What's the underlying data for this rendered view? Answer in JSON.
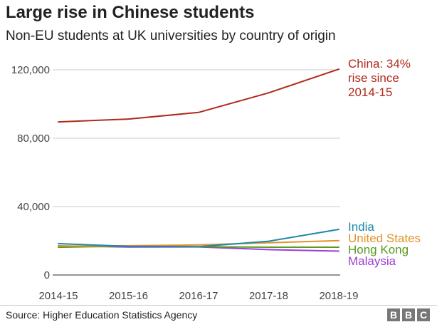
{
  "header": {
    "title": "Large rise in Chinese students",
    "subtitle": "Non-EU students at UK universities by country of origin"
  },
  "footer": {
    "source": "Source: Higher Education Statistics Agency",
    "logo_letters": [
      "B",
      "B",
      "C"
    ]
  },
  "chart_data": {
    "type": "line",
    "title": "Large rise in Chinese students",
    "subtitle": "Non-EU students at UK universities by country of origin",
    "xlabel": "",
    "ylabel": "",
    "categories": [
      "2014-15",
      "2015-16",
      "2016-17",
      "2017-18",
      "2018-19"
    ],
    "ylim": [
      0,
      120000
    ],
    "yticks": [
      0,
      40000,
      80000,
      120000
    ],
    "ytick_labels": [
      "0",
      "40,000",
      "80,000",
      "120,000"
    ],
    "grid": "horizontal",
    "series": [
      {
        "name": "China",
        "label_lines": [
          "China: 34%",
          "rise since",
          "2014-15"
        ],
        "color": "#b02a1a",
        "values": [
          89540,
          91215,
          95090,
          106530,
          120385
        ]
      },
      {
        "name": "India",
        "label_lines": [
          "India"
        ],
        "color": "#1f88a8",
        "values": [
          18320,
          16745,
          16550,
          19750,
          26685
        ]
      },
      {
        "name": "United States",
        "label_lines": [
          "United States"
        ],
        "color": "#e0932a",
        "values": [
          16865,
          17115,
          17580,
          18885,
          20120
        ]
      },
      {
        "name": "Hong Kong",
        "label_lines": [
          "Hong Kong"
        ],
        "color": "#5a9a1e",
        "values": [
          16215,
          16935,
          16480,
          16240,
          16255
        ]
      },
      {
        "name": "Malaysia",
        "label_lines": [
          "Malaysia"
        ],
        "color": "#9b3fd6",
        "values": [
          17060,
          16370,
          16405,
          14825,
          13965
        ]
      }
    ]
  }
}
